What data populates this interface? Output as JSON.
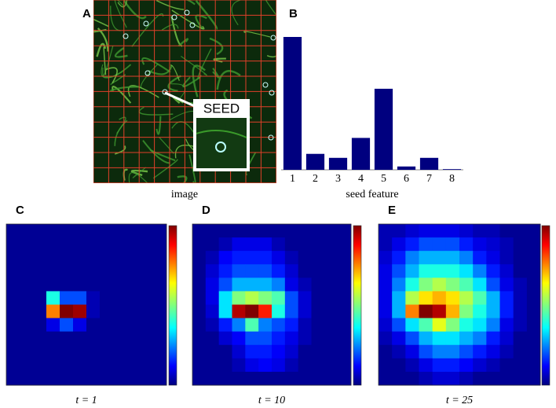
{
  "image_panel": {
    "panel_label": "A",
    "seed_label": "SEED",
    "caption": "image"
  },
  "chart_data": [
    {
      "type": "bar",
      "panel_label": "B",
      "xlabel": "seed feature",
      "categories": [
        "1",
        "2",
        "3",
        "4",
        "5",
        "6",
        "7",
        "8"
      ],
      "values": [
        1,
        0.12,
        0.09,
        0.24,
        0.61,
        0.025,
        0.09,
        0.005
      ],
      "color": "#00007f",
      "ylim": [
        0,
        1
      ]
    },
    {
      "type": "heatmap",
      "panel_label": "C",
      "caption": "t = 1",
      "colormap": "jet",
      "zlim": [
        0,
        1
      ],
      "z": [
        [
          0.02,
          0.02,
          0.02,
          0.02,
          0.02,
          0.02,
          0.02,
          0.02,
          0.02,
          0.02,
          0.02,
          0.02
        ],
        [
          0.02,
          0.02,
          0.02,
          0.02,
          0.02,
          0.02,
          0.02,
          0.02,
          0.02,
          0.02,
          0.02,
          0.02
        ],
        [
          0.02,
          0.02,
          0.02,
          0.02,
          0.02,
          0.02,
          0.02,
          0.02,
          0.02,
          0.02,
          0.02,
          0.02
        ],
        [
          0.02,
          0.02,
          0.02,
          0.02,
          0.02,
          0.02,
          0.02,
          0.02,
          0.02,
          0.02,
          0.02,
          0.02
        ],
        [
          0.02,
          0.02,
          0.02,
          0.02,
          0.02,
          0.02,
          0.02,
          0.02,
          0.02,
          0.02,
          0.02,
          0.02
        ],
        [
          0.02,
          0.02,
          0.02,
          0.4,
          0.2,
          0.2,
          0.05,
          0.02,
          0.02,
          0.02,
          0.02,
          0.02
        ],
        [
          0.02,
          0.02,
          0.02,
          0.75,
          1,
          0.97,
          0.05,
          0.02,
          0.02,
          0.02,
          0.02,
          0.02
        ],
        [
          0.02,
          0.02,
          0.02,
          0.1,
          0.2,
          0.1,
          0.02,
          0.02,
          0.02,
          0.02,
          0.02,
          0.02
        ],
        [
          0.02,
          0.02,
          0.02,
          0.02,
          0.02,
          0.02,
          0.02,
          0.02,
          0.02,
          0.02,
          0.02,
          0.02
        ],
        [
          0.02,
          0.02,
          0.02,
          0.02,
          0.02,
          0.02,
          0.02,
          0.02,
          0.02,
          0.02,
          0.02,
          0.02
        ],
        [
          0.02,
          0.02,
          0.02,
          0.02,
          0.02,
          0.02,
          0.02,
          0.02,
          0.02,
          0.02,
          0.02,
          0.02
        ],
        [
          0.02,
          0.02,
          0.02,
          0.02,
          0.02,
          0.02,
          0.02,
          0.02,
          0.02,
          0.02,
          0.02,
          0.02
        ]
      ]
    },
    {
      "type": "heatmap",
      "panel_label": "D",
      "caption": "t = 10",
      "colormap": "jet",
      "zlim": [
        0,
        1
      ],
      "z": [
        [
          0.02,
          0.02,
          0.02,
          0.02,
          0.02,
          0.02,
          0.02,
          0.02,
          0.02,
          0.02,
          0.02,
          0.02
        ],
        [
          0.02,
          0.02,
          0.05,
          0.1,
          0.1,
          0.1,
          0.05,
          0.02,
          0.02,
          0.02,
          0.02,
          0.02
        ],
        [
          0.02,
          0.05,
          0.12,
          0.15,
          0.15,
          0.15,
          0.1,
          0.05,
          0.02,
          0.02,
          0.02,
          0.02
        ],
        [
          0.02,
          0.08,
          0.15,
          0.2,
          0.2,
          0.2,
          0.15,
          0.08,
          0.02,
          0.02,
          0.02,
          0.02
        ],
        [
          0.02,
          0.1,
          0.2,
          0.3,
          0.3,
          0.3,
          0.25,
          0.1,
          0.05,
          0.02,
          0.02,
          0.02
        ],
        [
          0.02,
          0.1,
          0.35,
          0.5,
          0.55,
          0.5,
          0.45,
          0.2,
          0.08,
          0.02,
          0.02,
          0.02
        ],
        [
          0.02,
          0.08,
          0.35,
          0.95,
          1,
          0.85,
          0.4,
          0.2,
          0.08,
          0.02,
          0.02,
          0.02
        ],
        [
          0.02,
          0.05,
          0.15,
          0.25,
          0.45,
          0.25,
          0.2,
          0.15,
          0.05,
          0.02,
          0.02,
          0.02
        ],
        [
          0.02,
          0.02,
          0.08,
          0.12,
          0.2,
          0.2,
          0.15,
          0.1,
          0.05,
          0.02,
          0.02,
          0.02
        ],
        [
          0.02,
          0.02,
          0.02,
          0.08,
          0.15,
          0.15,
          0.12,
          0.08,
          0.02,
          0.02,
          0.02,
          0.02
        ],
        [
          0.02,
          0.02,
          0.02,
          0.05,
          0.1,
          0.12,
          0.1,
          0.05,
          0.02,
          0.02,
          0.02,
          0.02
        ],
        [
          0.02,
          0.02,
          0.02,
          0.02,
          0.02,
          0.02,
          0.02,
          0.02,
          0.02,
          0.02,
          0.02,
          0.02
        ]
      ]
    },
    {
      "type": "heatmap",
      "panel_label": "E",
      "caption": "t = 25",
      "colormap": "jet",
      "zlim": [
        0,
        1
      ],
      "z": [
        [
          0.05,
          0.05,
          0.08,
          0.1,
          0.1,
          0.1,
          0.08,
          0.05,
          0.05,
          0.02,
          0.02,
          0.02
        ],
        [
          0.05,
          0.1,
          0.15,
          0.2,
          0.2,
          0.2,
          0.15,
          0.1,
          0.08,
          0.05,
          0.02,
          0.02
        ],
        [
          0.08,
          0.15,
          0.25,
          0.3,
          0.3,
          0.3,
          0.25,
          0.15,
          0.1,
          0.05,
          0.02,
          0.02
        ],
        [
          0.1,
          0.2,
          0.3,
          0.4,
          0.4,
          0.4,
          0.35,
          0.25,
          0.15,
          0.08,
          0.02,
          0.02
        ],
        [
          0.1,
          0.25,
          0.4,
          0.5,
          0.55,
          0.5,
          0.45,
          0.35,
          0.2,
          0.1,
          0.05,
          0.02
        ],
        [
          0.1,
          0.3,
          0.55,
          0.65,
          0.7,
          0.65,
          0.55,
          0.45,
          0.3,
          0.15,
          0.05,
          0.02
        ],
        [
          0.1,
          0.3,
          0.75,
          1,
          0.95,
          0.7,
          0.5,
          0.4,
          0.3,
          0.15,
          0.05,
          0.02
        ],
        [
          0.08,
          0.2,
          0.35,
          0.45,
          0.6,
          0.5,
          0.4,
          0.35,
          0.25,
          0.1,
          0.05,
          0.02
        ],
        [
          0.05,
          0.1,
          0.2,
          0.3,
          0.35,
          0.35,
          0.3,
          0.25,
          0.15,
          0.08,
          0.02,
          0.02
        ],
        [
          0.02,
          0.05,
          0.1,
          0.2,
          0.25,
          0.25,
          0.2,
          0.15,
          0.1,
          0.05,
          0.02,
          0.02
        ],
        [
          0.02,
          0.02,
          0.05,
          0.1,
          0.15,
          0.15,
          0.12,
          0.08,
          0.05,
          0.02,
          0.02,
          0.02
        ],
        [
          0.02,
          0.02,
          0.02,
          0.05,
          0.08,
          0.08,
          0.05,
          0.02,
          0.02,
          0.02,
          0.02,
          0.02
        ]
      ]
    }
  ]
}
